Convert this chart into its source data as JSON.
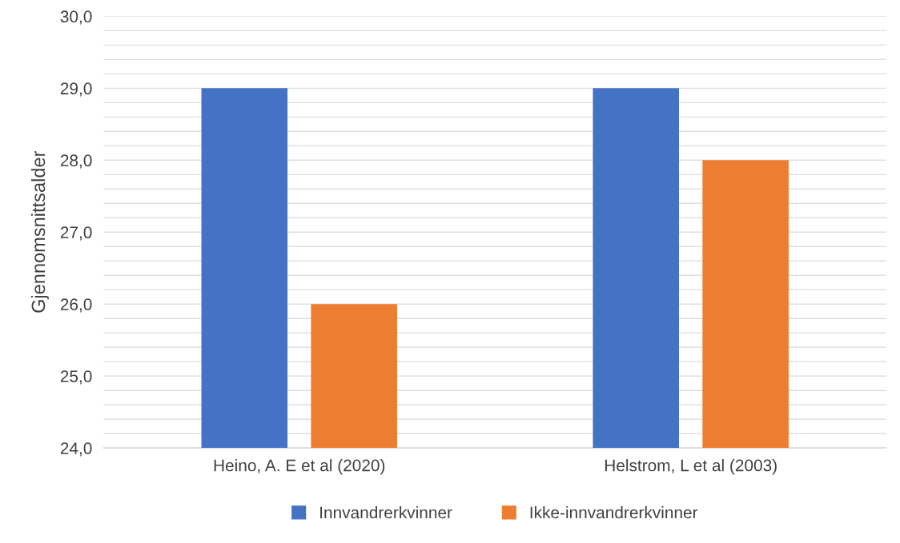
{
  "chart_data": {
    "type": "bar",
    "ylabel": "Gjennomsnittsalder",
    "categories": [
      "Heino, A. E et al (2020)",
      "Helstrom, L et al (2003)"
    ],
    "series": [
      {
        "name": "Innvandrerkvinner",
        "color": "#4472c4",
        "values": [
          29.0,
          29.0
        ]
      },
      {
        "name": "Ikke-innvandrerkvinner",
        "color": "#ed7d31",
        "values": [
          26.0,
          28.0
        ]
      }
    ],
    "ylim": [
      24,
      30
    ],
    "yticks": [
      {
        "value": 24,
        "label": "24,0"
      },
      {
        "value": 24.2,
        "label": null
      },
      {
        "value": 24.4,
        "label": null
      },
      {
        "value": 24.6,
        "label": null
      },
      {
        "value": 24.8,
        "label": null
      },
      {
        "value": 25,
        "label": "25,0"
      },
      {
        "value": 25.2,
        "label": null
      },
      {
        "value": 25.4,
        "label": null
      },
      {
        "value": 25.6,
        "label": null
      },
      {
        "value": 25.8,
        "label": null
      },
      {
        "value": 26,
        "label": "26,0"
      },
      {
        "value": 26.2,
        "label": null
      },
      {
        "value": 26.4,
        "label": null
      },
      {
        "value": 26.6,
        "label": null
      },
      {
        "value": 26.8,
        "label": null
      },
      {
        "value": 27,
        "label": "27,0"
      },
      {
        "value": 27.2,
        "label": null
      },
      {
        "value": 27.4,
        "label": null
      },
      {
        "value": 27.6,
        "label": null
      },
      {
        "value": 27.8,
        "label": null
      },
      {
        "value": 28,
        "label": "28,0"
      },
      {
        "value": 28.2,
        "label": null
      },
      {
        "value": 28.4,
        "label": null
      },
      {
        "value": 28.6,
        "label": null
      },
      {
        "value": 28.8,
        "label": null
      },
      {
        "value": 29,
        "label": "29,0"
      },
      {
        "value": 29.2,
        "label": null
      },
      {
        "value": 29.4,
        "label": null
      },
      {
        "value": 29.6,
        "label": null
      },
      {
        "value": 29.8,
        "label": null
      },
      {
        "value": 30,
        "label": "30,0"
      }
    ],
    "grid": "y",
    "legend": "bottom"
  }
}
